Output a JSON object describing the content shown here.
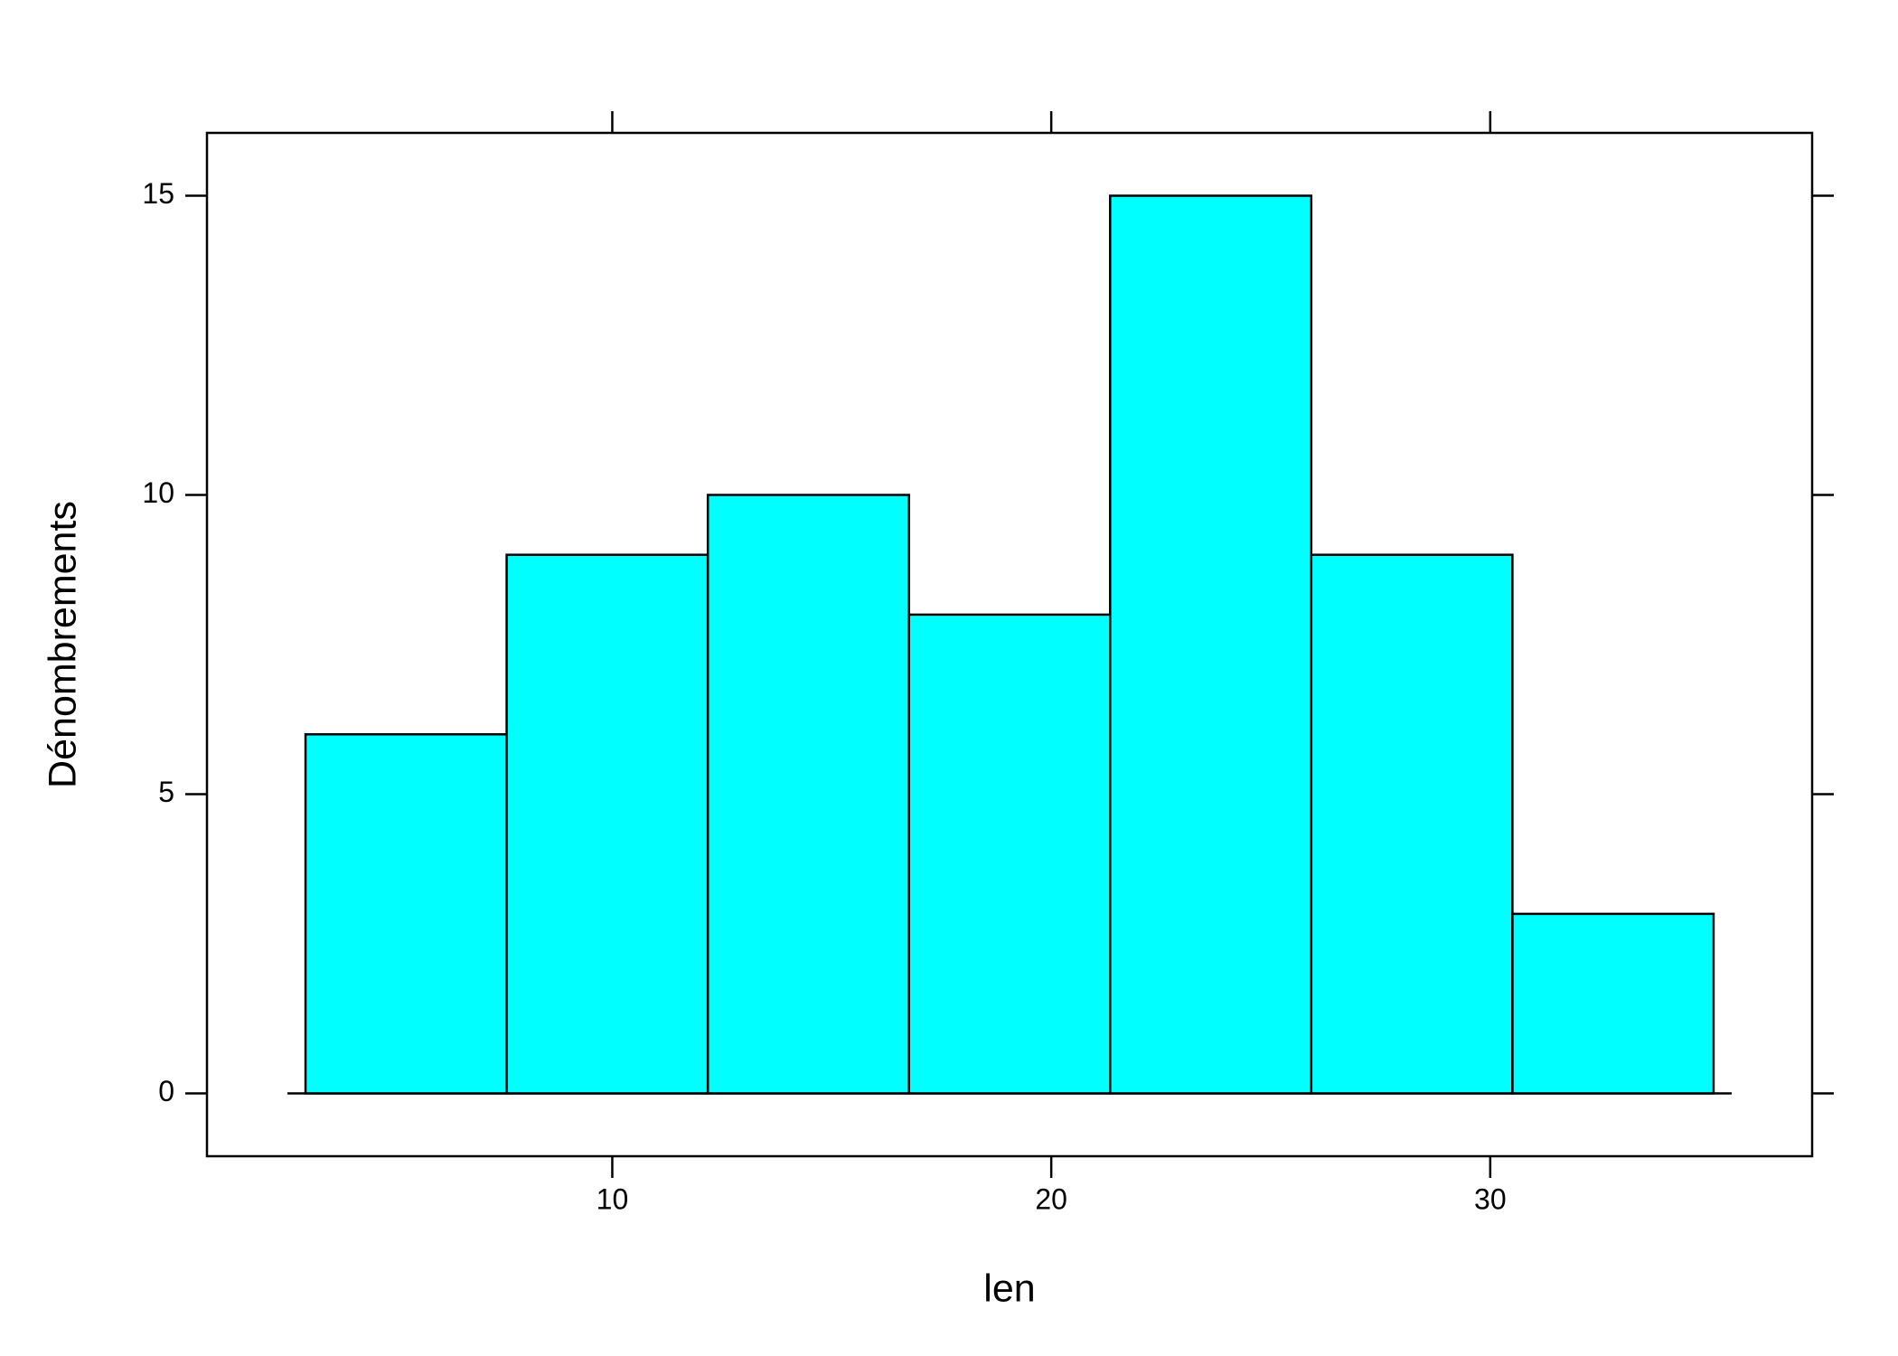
{
  "chart_data": {
    "type": "histogram",
    "xlabel": "len",
    "ylabel": "Dénombrements",
    "bins": [
      3.012,
      7.594,
      12.177,
      16.759,
      21.341,
      25.923,
      30.506,
      35.088
    ],
    "values": [
      6,
      9,
      10,
      8,
      15,
      9,
      3
    ],
    "color": "#00ffff",
    "xlim": [
      0.767,
      37.333
    ],
    "xticks": [
      10,
      20,
      30
    ],
    "ylim": [
      -1.05,
      16.05
    ],
    "yticks": [
      0,
      5,
      10,
      15
    ]
  }
}
